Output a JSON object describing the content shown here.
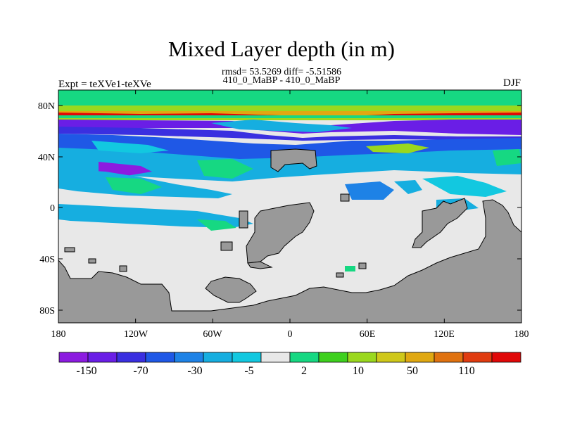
{
  "header": {
    "title": "Mixed Layer depth (in m)",
    "stats": "rmsd= 53.5269 diff= -5.51586",
    "subtitle": "410_0_MaBP - 410_0_MaBP",
    "left_label": "Expt = teXVe1-teXVe",
    "right_label": "DJF"
  },
  "axes": {
    "lat_ticks": [
      "80N",
      "40N",
      "0",
      "40S",
      "80S"
    ],
    "lon_ticks": [
      "180",
      "120W",
      "60W",
      "0",
      "60E",
      "120E",
      "180"
    ]
  },
  "colorbar": {
    "labels": [
      "-150",
      "-70",
      "-30",
      "-5",
      "2",
      "10",
      "50",
      "110"
    ],
    "colors": [
      "#8c1be0",
      "#6a1ee6",
      "#3a2fe0",
      "#1f58e6",
      "#1e82e6",
      "#16aee0",
      "#12c8e0",
      "#e8e8e8",
      "#16d882",
      "#3ed01e",
      "#9ad81e",
      "#cfc81a",
      "#e0a812",
      "#e07210",
      "#e03c10",
      "#e00808"
    ]
  },
  "map": {
    "land_color": "#999999",
    "ocean_color": "#e8e8e8"
  }
}
